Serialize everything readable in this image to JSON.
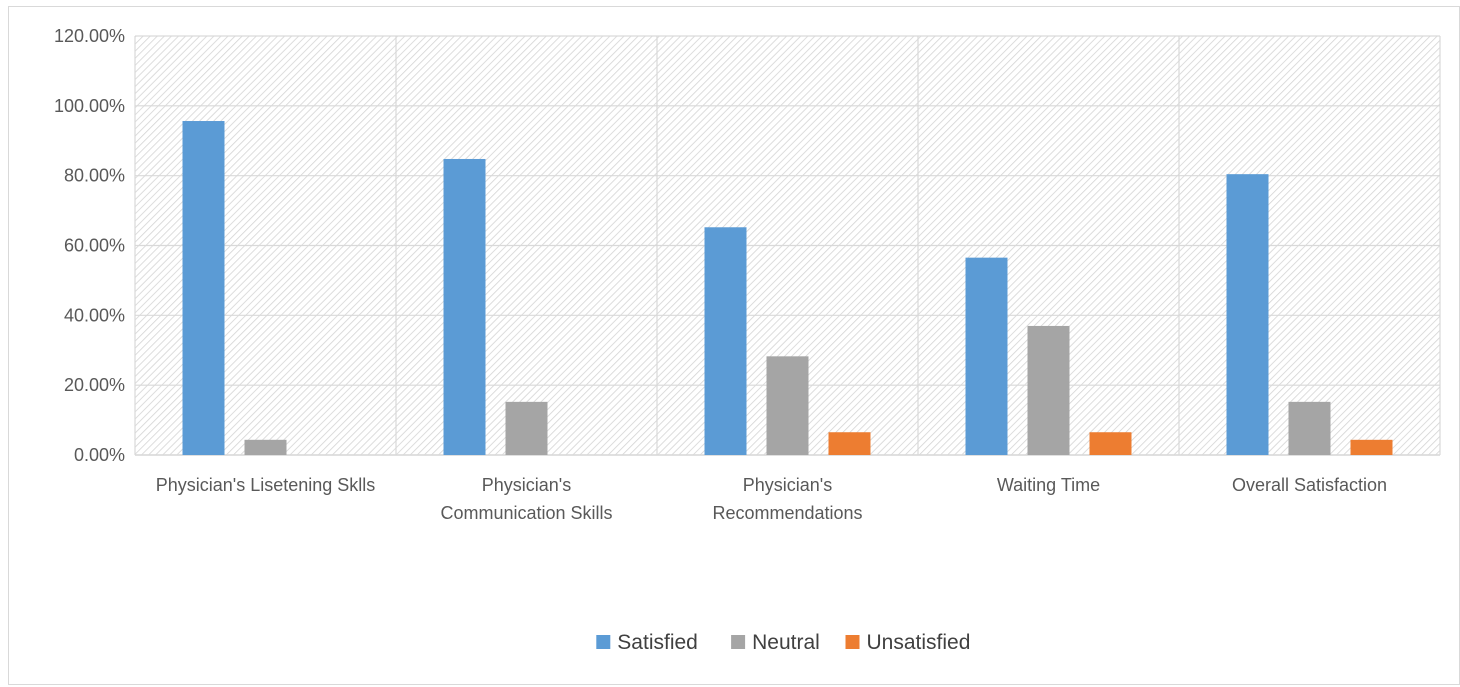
{
  "chart_data": {
    "type": "bar",
    "title": "",
    "xlabel": "",
    "ylabel": "",
    "categories": [
      [
        "Physician's Lisetening Sklls"
      ],
      [
        "Physician's",
        "Communication Skills"
      ],
      [
        "Physician's",
        "Recommendations"
      ],
      [
        "Waiting Time"
      ],
      [
        "Overall Satisfaction"
      ]
    ],
    "series": [
      {
        "name": "Satisfied",
        "color": "#5b9bd5",
        "values": [
          95.65,
          84.78,
          65.22,
          56.52,
          80.43
        ]
      },
      {
        "name": "Neutral",
        "color": "#a5a5a5",
        "values": [
          4.35,
          15.22,
          28.26,
          36.96,
          15.22
        ]
      },
      {
        "name": "Unsatisfied",
        "color": "#ed7d31",
        "values": [
          0,
          0,
          6.52,
          6.52,
          4.35
        ]
      }
    ],
    "ylim": [
      0,
      120
    ],
    "yticks": [
      "0.00%",
      "20.00%",
      "40.00%",
      "60.00%",
      "80.00%",
      "100.00%",
      "120.00%"
    ],
    "grid": true,
    "plot_background": "hatched",
    "legend_position": "bottom"
  }
}
